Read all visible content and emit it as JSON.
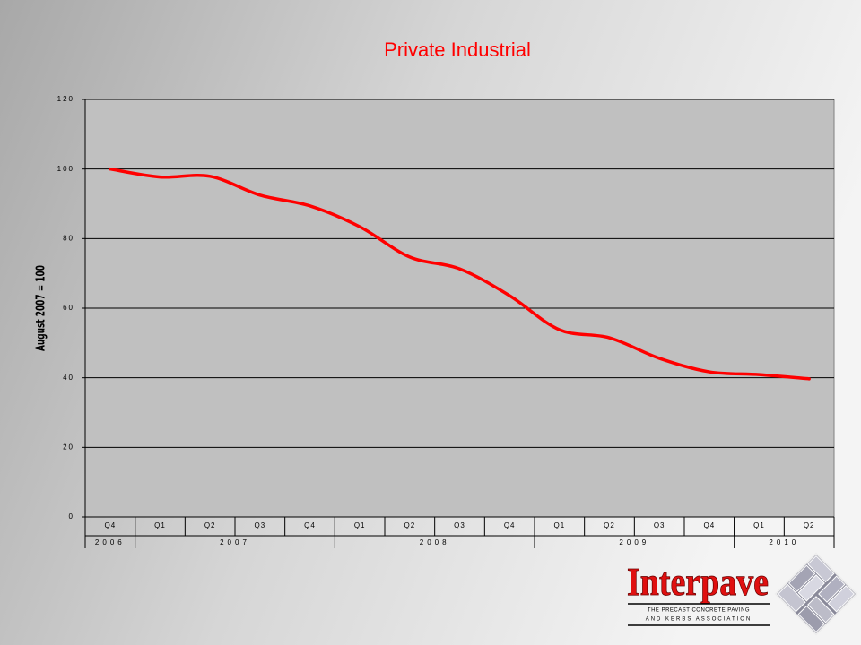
{
  "chart_data": {
    "type": "line",
    "title": "Private Industrial",
    "y_label": "August 2007 = 100",
    "categories": [
      "Q4",
      "Q1",
      "Q2",
      "Q3",
      "Q4",
      "Q1",
      "Q2",
      "Q3",
      "Q4",
      "Q1",
      "Q2",
      "Q3",
      "Q4",
      "Q1",
      "Q2"
    ],
    "year_groups": [
      {
        "label": "2006",
        "span": 1
      },
      {
        "label": "2007",
        "span": 4
      },
      {
        "label": "2008",
        "span": 4
      },
      {
        "label": "2009",
        "span": 4
      },
      {
        "label": "2010",
        "span": 2
      }
    ],
    "series": [
      {
        "name": "Private Industrial",
        "color": "#ff0000",
        "values": [
          100,
          97.7,
          97.9,
          92.5,
          89.4,
          83.4,
          74.7,
          71.3,
          63.6,
          53.8,
          51.5,
          45.6,
          41.7,
          40.9,
          39.7
        ]
      }
    ],
    "ylim": [
      0,
      120
    ],
    "yticks": [
      0,
      20,
      40,
      60,
      80,
      100,
      120
    ],
    "grid": true,
    "plot_color": "#c0c0c0"
  },
  "logo": {
    "name": "Interpave",
    "line1": "THE PRECAST CONCRETE PAVING",
    "line2": "AND KERBS ASSOCIATION"
  }
}
